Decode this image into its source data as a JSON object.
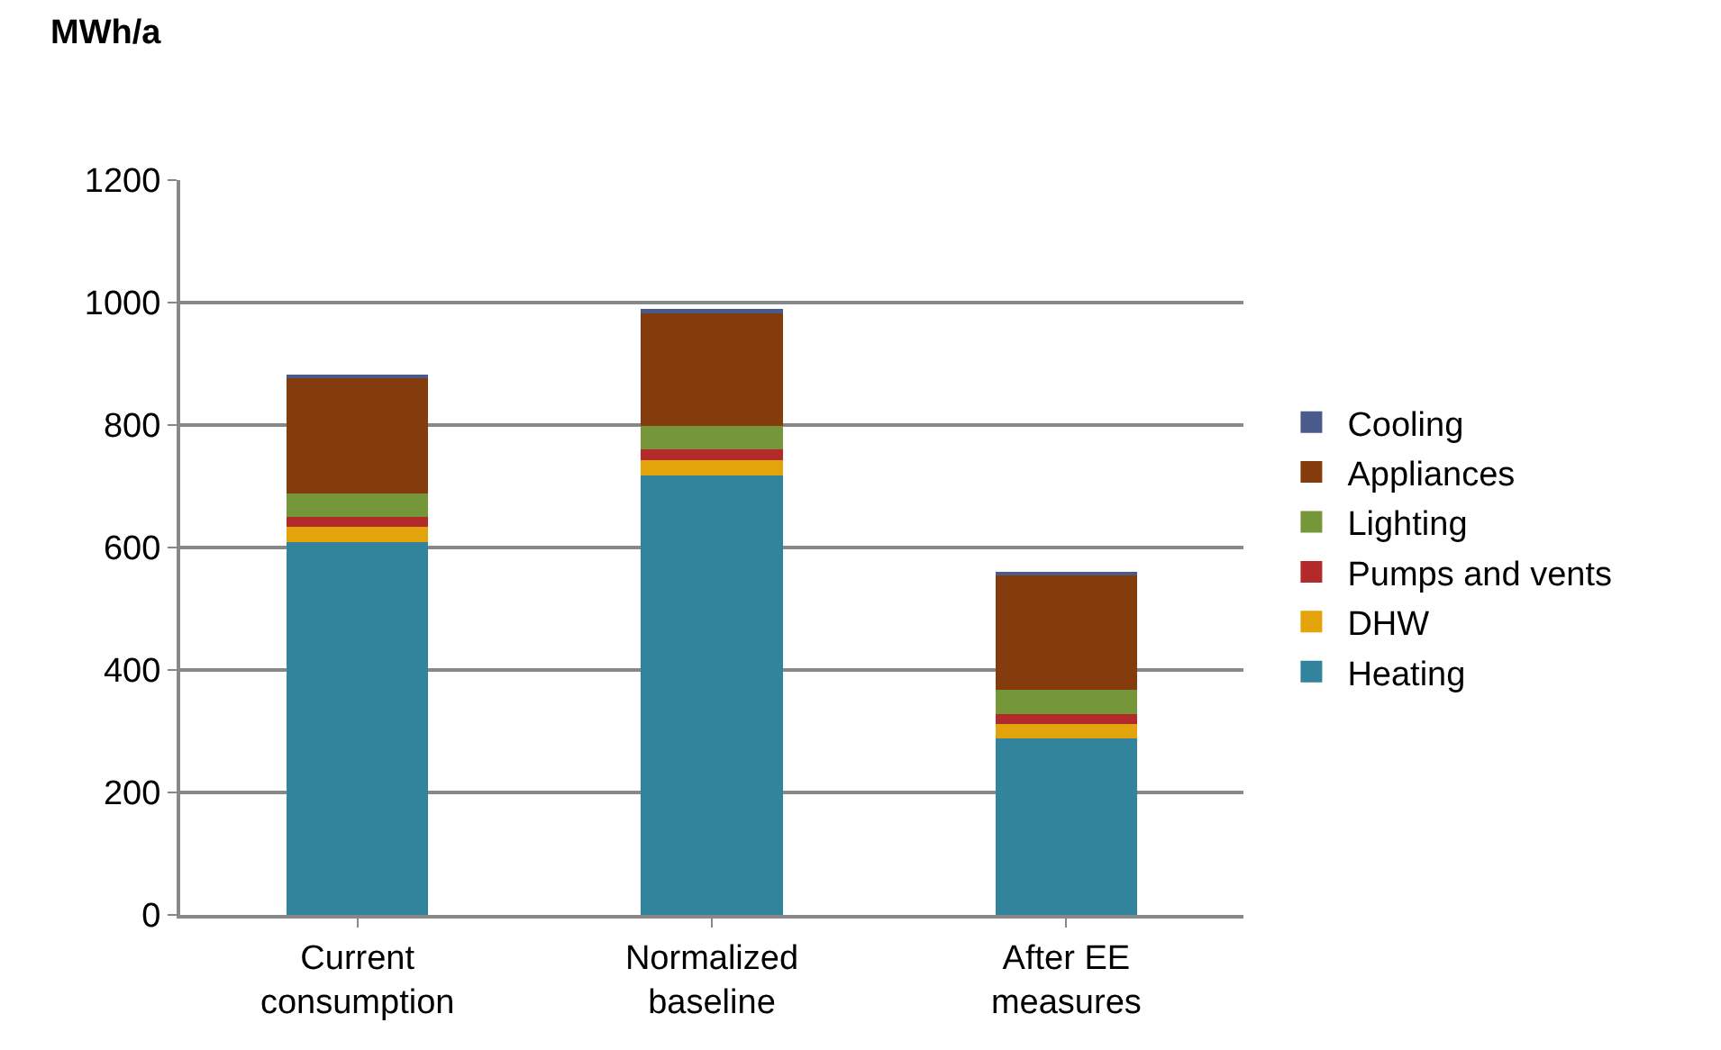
{
  "chart_data": {
    "type": "bar",
    "stacked": true,
    "ylabel": "MWh/a",
    "categories": [
      "Current\nconsumption",
      "Normalized\nbaseline",
      "After EE\nmeasures"
    ],
    "series": [
      {
        "name": "Heating",
        "color": "#31849b",
        "values": [
          609,
          717,
          288
        ]
      },
      {
        "name": "DHW",
        "color": "#e3a30b",
        "values": [
          25,
          25,
          24
        ]
      },
      {
        "name": "Pumps and vents",
        "color": "#b22a2a",
        "values": [
          16,
          18,
          16
        ]
      },
      {
        "name": "Lighting",
        "color": "#76963a",
        "values": [
          38,
          38,
          39
        ]
      },
      {
        "name": "Appliances",
        "color": "#843c0c",
        "values": [
          188,
          185,
          188
        ]
      },
      {
        "name": "Cooling",
        "color": "#4a5a8a",
        "values": [
          6,
          7,
          6
        ]
      }
    ],
    "ylim": [
      0,
      1200
    ],
    "yticks": [
      0,
      200,
      400,
      600,
      800,
      1000,
      1200
    ],
    "grid": "y",
    "legend": "right"
  }
}
